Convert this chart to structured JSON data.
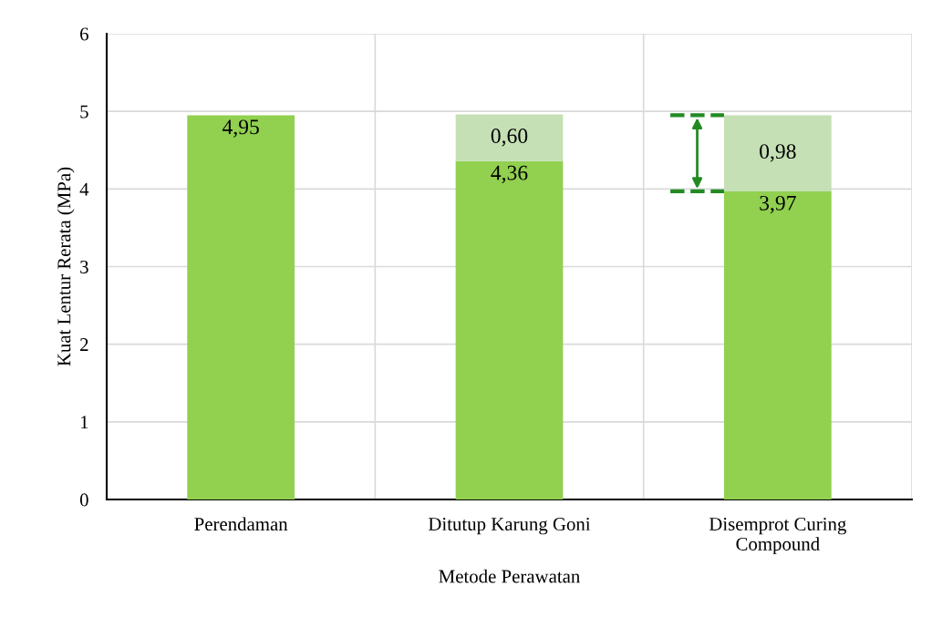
{
  "chart_data": {
    "type": "bar",
    "stacked": true,
    "xlabel": "Metode Perawatan",
    "ylabel": "Kuat Lentur Rerata (MPa)",
    "categories": [
      "Perendaman",
      "Ditutup Karung Goni",
      "Disemprot Curing\nCompound"
    ],
    "series": [
      {
        "color": "#92d050",
        "values": [
          4.95,
          4.36,
          3.97
        ],
        "value_labels": [
          "4,95",
          "4,36",
          "3,97"
        ]
      },
      {
        "color": "#c5e0b4",
        "values": [
          null,
          0.6,
          0.98
        ],
        "value_labels": [
          null,
          "0,60",
          "0,98"
        ]
      }
    ],
    "ylim": [
      0,
      6
    ],
    "yticks": [
      0,
      1,
      2,
      3,
      4,
      5,
      6
    ],
    "grid": true,
    "legend": false
  }
}
